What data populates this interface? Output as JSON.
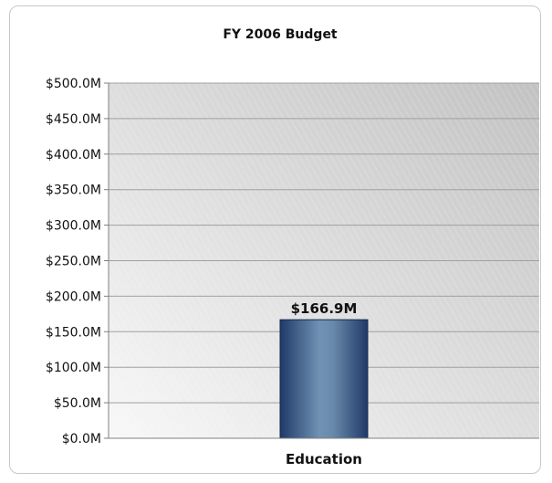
{
  "chart_data": {
    "type": "bar",
    "title": "FY 2006 Budget",
    "categories": [
      "Education"
    ],
    "values": [
      166.9
    ],
    "data_labels": [
      "$166.9M"
    ],
    "ylim": [
      0,
      500
    ],
    "yticks": [
      0,
      50,
      100,
      150,
      200,
      250,
      300,
      350,
      400,
      450,
      500
    ],
    "ytick_labels": [
      "$0.0M",
      "$50.0M",
      "$100.0M",
      "$150.0M",
      "$200.0M",
      "$250.0M",
      "$300.0M",
      "$350.0M",
      "$400.0M",
      "$450.0M",
      "$500.0M"
    ],
    "grid": true,
    "colors": {
      "bar_dark": "#1f3a68",
      "bar_light": "#6f8fb0",
      "plot_bg_light": "#f7f7f7",
      "plot_bg_dark": "#c4c4c4",
      "gridline": "#a0a0a0"
    }
  }
}
